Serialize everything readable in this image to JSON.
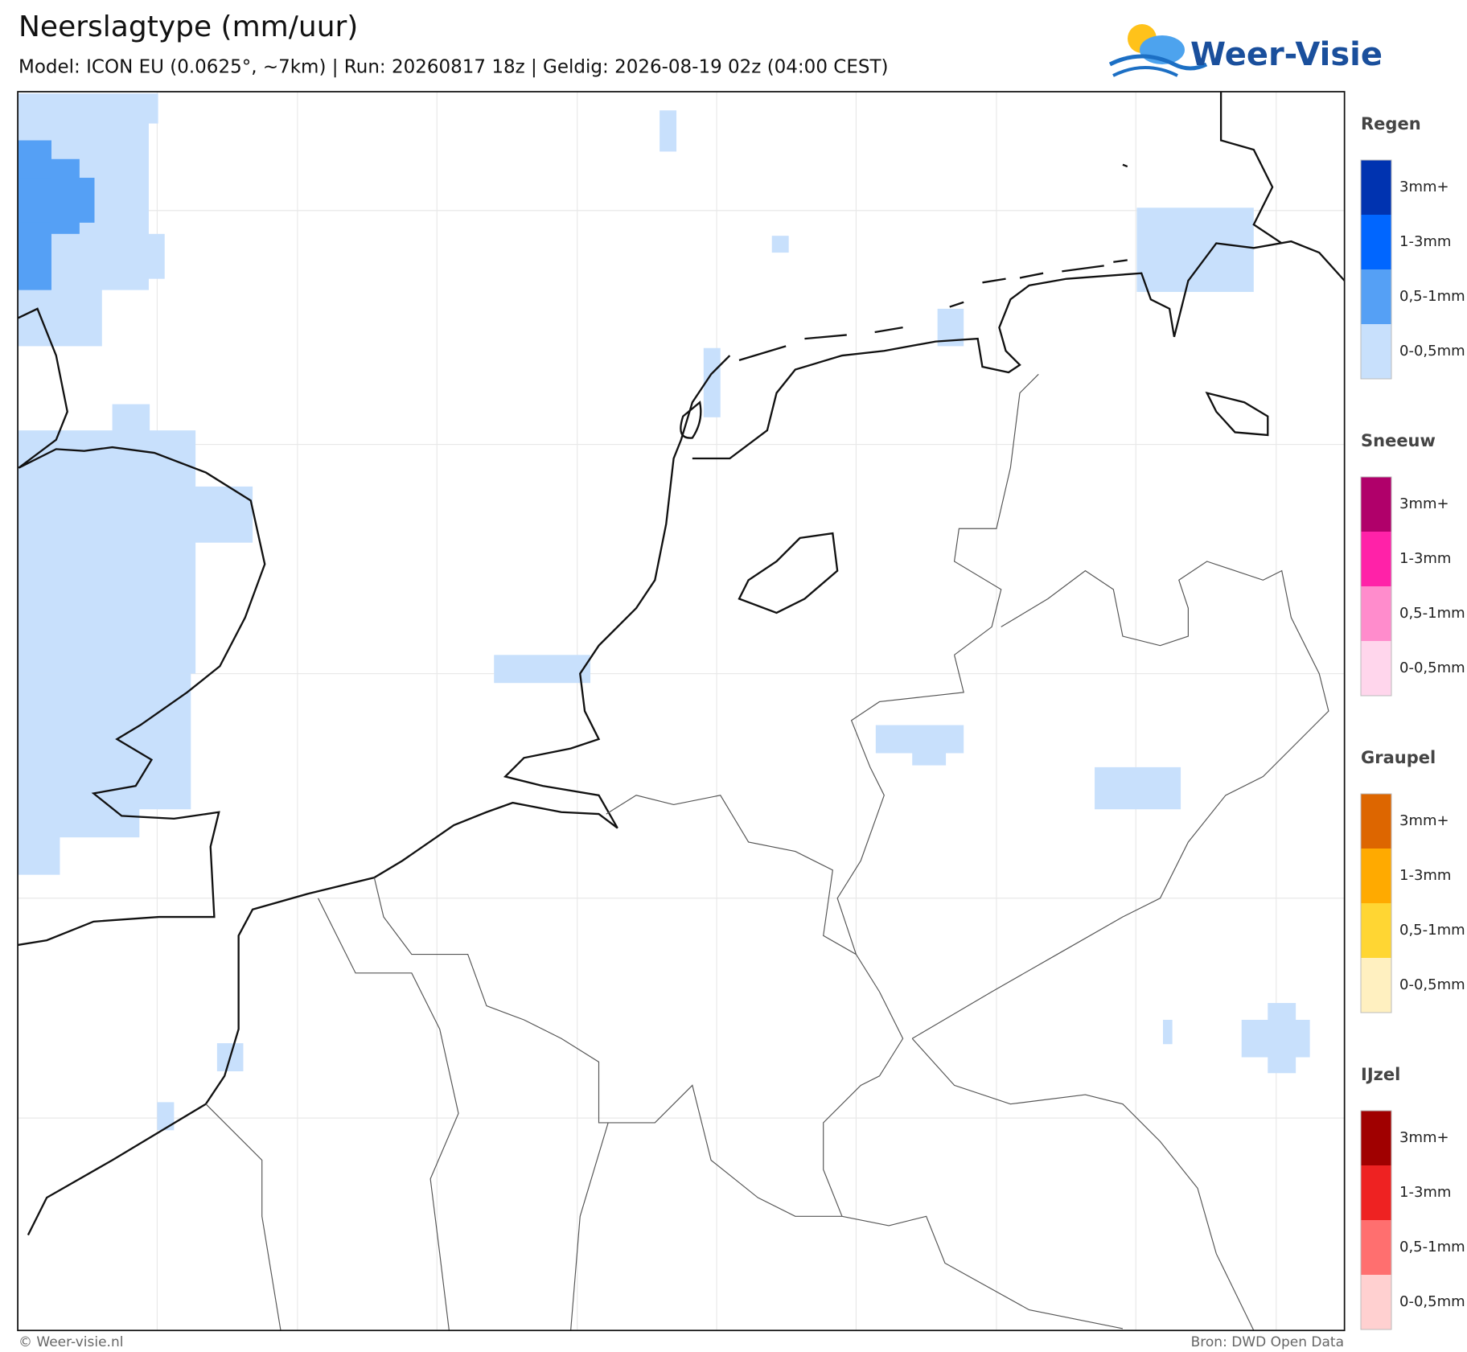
{
  "header": {
    "title": "Neerslagtype (mm/uur)",
    "subtitle": "Model: ICON EU (0.0625°, ~7km)  |  Run: 20260817 18z  |  Geldig: 2026-08-19 02z (04:00 CEST)"
  },
  "logo": {
    "text": "Weer-Visie"
  },
  "legend": [
    {
      "name": "Regen",
      "items": [
        {
          "label": "3mm+",
          "color": "#0033b0"
        },
        {
          "label": "1-3mm",
          "color": "#0066ff"
        },
        {
          "label": "0,5-1mm",
          "color": "#55a0f5"
        },
        {
          "label": "0-0,5mm",
          "color": "#c8e0fc"
        }
      ]
    },
    {
      "name": "Sneeuw",
      "items": [
        {
          "label": "3mm+",
          "color": "#b0006a"
        },
        {
          "label": "1-3mm",
          "color": "#ff22a8"
        },
        {
          "label": "0,5-1mm",
          "color": "#ff8ccc"
        },
        {
          "label": "0-0,5mm",
          "color": "#ffd6ec"
        }
      ]
    },
    {
      "name": "Graupel",
      "items": [
        {
          "label": "3mm+",
          "color": "#dd6600"
        },
        {
          "label": "1-3mm",
          "color": "#ffaa00"
        },
        {
          "label": "0,5-1mm",
          "color": "#ffd633"
        },
        {
          "label": "0-0,5mm",
          "color": "#fff0c0"
        }
      ]
    },
    {
      "name": "IJzel",
      "items": [
        {
          "label": "3mm+",
          "color": "#a00000"
        },
        {
          "label": "1-3mm",
          "color": "#ee2222"
        },
        {
          "label": "0,5-1mm",
          "color": "#ff6f6f"
        },
        {
          "label": "0-0,5mm",
          "color": "#ffd0d0"
        }
      ]
    }
  ],
  "footer": {
    "left": "© Weer-visie.nl",
    "right": "Bron: DWD Open Data"
  }
}
